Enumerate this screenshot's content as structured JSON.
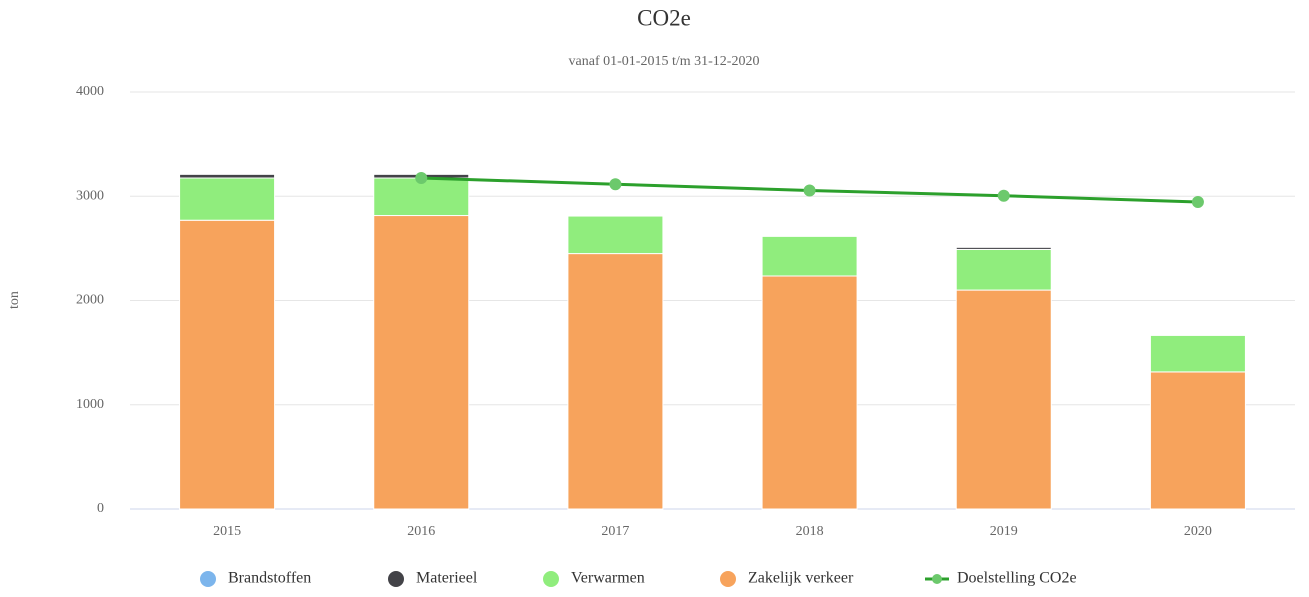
{
  "chart_data": {
    "type": "bar",
    "stacked": true,
    "title": "CO2e",
    "subtitle": "vanaf 01-01-2015 t/m 31-12-2020",
    "y_axis_label": "ton",
    "categories": [
      "2015",
      "2016",
      "2017",
      "2018",
      "2019",
      "2020"
    ],
    "series": [
      {
        "name": "Brandstoffen",
        "color": "#7cb5ec",
        "values": [
          0,
          0,
          0,
          0,
          0,
          0
        ]
      },
      {
        "name": "Materieel",
        "color": "#434348",
        "values": [
          35,
          35,
          0,
          0,
          20,
          0
        ]
      },
      {
        "name": "Verwarmen",
        "color": "#90ed7d",
        "values": [
          405,
          360,
          360,
          380,
          390,
          350
        ]
      },
      {
        "name": "Zakelijk verkeer",
        "color": "#f7a35c",
        "values": [
          2770,
          2815,
          2450,
          2235,
          2100,
          1315
        ]
      },
      {
        "name": "Doelstelling CO2e",
        "type": "line",
        "color": "#2ca02c",
        "marker_color": "#6cc96c",
        "values": [
          null,
          3175,
          3115,
          3055,
          3005,
          2945
        ]
      }
    ],
    "ylim": [
      0,
      4000
    ],
    "yticks": [
      0,
      1000,
      2000,
      3000,
      4000
    ],
    "grid": true,
    "legend": "bottom"
  }
}
